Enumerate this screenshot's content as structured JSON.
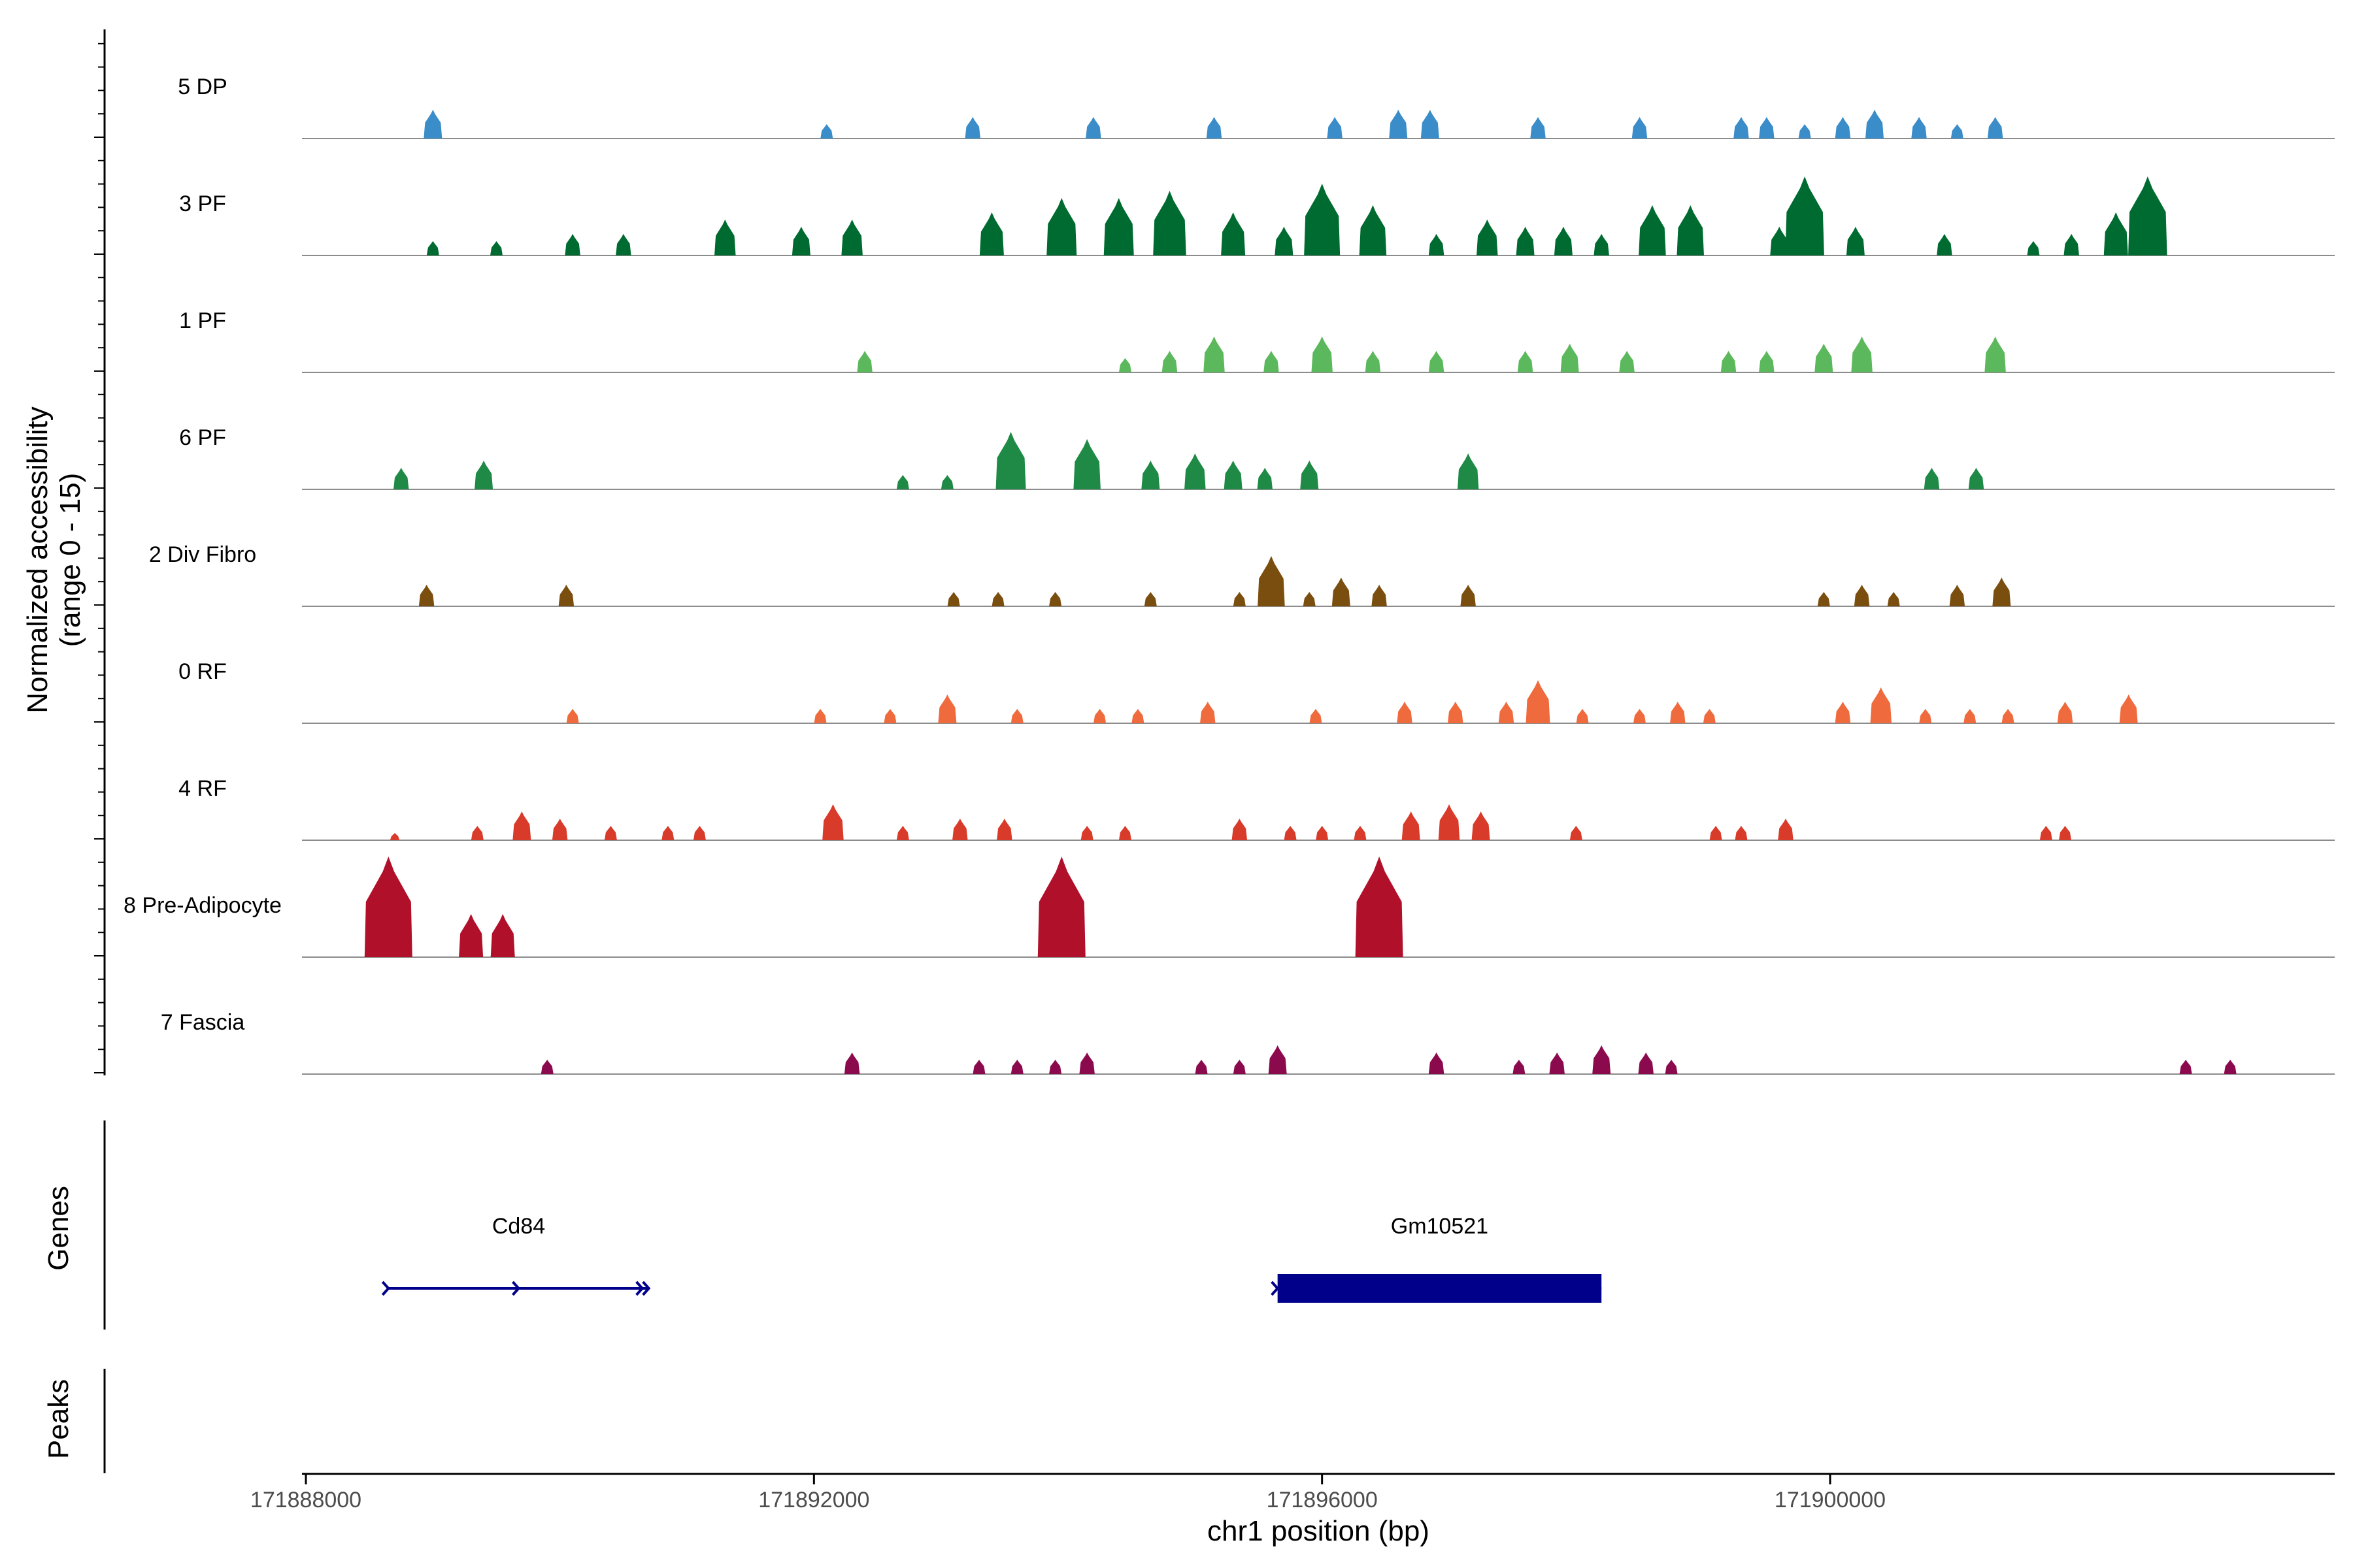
{
  "chart_data": {
    "type": "area",
    "title": "",
    "ylabel_line1": "Normalized accessibility",
    "ylabel_line2": "(range 0 - 15)",
    "ylim": [
      0,
      15
    ],
    "xlabel": "chr1 position (bp)",
    "xlim": [
      171888000,
      171904000
    ],
    "x_ticks": [
      171888000,
      171892000,
      171896000,
      171900000
    ],
    "x_tick_labels": [
      "171888000",
      "171892000",
      "171896000",
      "171900000"
    ],
    "genes_panel_label": "Genes",
    "peaks_panel_label": "Peaks",
    "tracks": [
      {
        "name": "5 DP",
        "color": "#3a8dc8",
        "peaks": [
          [
            171889000,
            4
          ],
          [
            171892100,
            2
          ],
          [
            171893250,
            3
          ],
          [
            171894200,
            3
          ],
          [
            171895150,
            3
          ],
          [
            171896100,
            3
          ],
          [
            171896600,
            4
          ],
          [
            171896850,
            4
          ],
          [
            171897700,
            3
          ],
          [
            171898500,
            3
          ],
          [
            171899300,
            3
          ],
          [
            171899500,
            3
          ],
          [
            171899800,
            2
          ],
          [
            171900100,
            3
          ],
          [
            171900350,
            4
          ],
          [
            171900700,
            3
          ],
          [
            171901000,
            2
          ],
          [
            171901300,
            3
          ]
        ]
      },
      {
        "name": "3 PF",
        "color": "#006b30",
        "peaks": [
          [
            171889000,
            2
          ],
          [
            171889500,
            2
          ],
          [
            171890100,
            3
          ],
          [
            171890500,
            3
          ],
          [
            171891300,
            5
          ],
          [
            171891900,
            4
          ],
          [
            171892300,
            5
          ],
          [
            171893400,
            6
          ],
          [
            171893950,
            8
          ],
          [
            171894400,
            8
          ],
          [
            171894800,
            9
          ],
          [
            171895300,
            6
          ],
          [
            171895700,
            4
          ],
          [
            171896000,
            10
          ],
          [
            171896400,
            7
          ],
          [
            171896900,
            3
          ],
          [
            171897300,
            5
          ],
          [
            171897600,
            4
          ],
          [
            171897900,
            4
          ],
          [
            171898200,
            3
          ],
          [
            171898600,
            7
          ],
          [
            171898900,
            7
          ],
          [
            171899600,
            4
          ],
          [
            171899800,
            11
          ],
          [
            171900200,
            4
          ],
          [
            171900900,
            3
          ],
          [
            171901600,
            2
          ],
          [
            171901900,
            3
          ],
          [
            171902250,
            6
          ],
          [
            171902500,
            11
          ]
        ]
      },
      {
        "name": "1 PF",
        "color": "#5cb85c",
        "peaks": [
          [
            171892400,
            3
          ],
          [
            171894450,
            2
          ],
          [
            171894800,
            3
          ],
          [
            171895150,
            5
          ],
          [
            171895600,
            3
          ],
          [
            171896000,
            5
          ],
          [
            171896400,
            3
          ],
          [
            171896900,
            3
          ],
          [
            171897600,
            3
          ],
          [
            171897950,
            4
          ],
          [
            171898400,
            3
          ],
          [
            171899200,
            3
          ],
          [
            171899500,
            3
          ],
          [
            171899950,
            4
          ],
          [
            171900250,
            5
          ],
          [
            171901300,
            5
          ]
        ]
      },
      {
        "name": "6 PF",
        "color": "#1e8a45",
        "peaks": [
          [
            171888750,
            3
          ],
          [
            171889400,
            4
          ],
          [
            171892700,
            2
          ],
          [
            171893050,
            2
          ],
          [
            171893550,
            8
          ],
          [
            171894150,
            7
          ],
          [
            171894650,
            4
          ],
          [
            171895000,
            5
          ],
          [
            171895300,
            4
          ],
          [
            171895550,
            3
          ],
          [
            171895900,
            4
          ],
          [
            171897150,
            5
          ],
          [
            171900800,
            3
          ],
          [
            171901150,
            3
          ]
        ]
      },
      {
        "name": "2 Div Fibro",
        "color": "#7a4e0e",
        "peaks": [
          [
            171888950,
            3
          ],
          [
            171890050,
            3
          ],
          [
            171893100,
            2
          ],
          [
            171893450,
            2
          ],
          [
            171893900,
            2
          ],
          [
            171894650,
            2
          ],
          [
            171895350,
            2
          ],
          [
            171895600,
            7
          ],
          [
            171895900,
            2
          ],
          [
            171896150,
            4
          ],
          [
            171896450,
            3
          ],
          [
            171897150,
            3
          ],
          [
            171899950,
            2
          ],
          [
            171900250,
            3
          ],
          [
            171900500,
            2
          ],
          [
            171901000,
            3
          ],
          [
            171901350,
            4
          ]
        ]
      },
      {
        "name": "0 RF",
        "color": "#ef6a3c",
        "peaks": [
          [
            171890100,
            2
          ],
          [
            171892050,
            2
          ],
          [
            171892600,
            2
          ],
          [
            171893050,
            4
          ],
          [
            171893600,
            2
          ],
          [
            171894250,
            2
          ],
          [
            171894550,
            2
          ],
          [
            171895100,
            3
          ],
          [
            171895950,
            2
          ],
          [
            171896650,
            3
          ],
          [
            171897050,
            3
          ],
          [
            171897450,
            3
          ],
          [
            171897700,
            6
          ],
          [
            171898050,
            2
          ],
          [
            171898500,
            2
          ],
          [
            171898800,
            3
          ],
          [
            171899050,
            2
          ],
          [
            171900100,
            3
          ],
          [
            171900400,
            5
          ],
          [
            171900750,
            2
          ],
          [
            171901100,
            2
          ],
          [
            171901400,
            2
          ],
          [
            171901850,
            3
          ],
          [
            171902350,
            4
          ]
        ]
      },
      {
        "name": "4 RF",
        "color": "#d93b2b",
        "peaks": [
          [
            171888700,
            1
          ],
          [
            171889350,
            2
          ],
          [
            171889700,
            4
          ],
          [
            171890000,
            3
          ],
          [
            171890400,
            2
          ],
          [
            171890850,
            2
          ],
          [
            171891100,
            2
          ],
          [
            171892150,
            5
          ],
          [
            171892700,
            2
          ],
          [
            171893150,
            3
          ],
          [
            171893500,
            3
          ],
          [
            171894150,
            2
          ],
          [
            171894450,
            2
          ],
          [
            171895350,
            3
          ],
          [
            171895750,
            2
          ],
          [
            171896000,
            2
          ],
          [
            171896300,
            2
          ],
          [
            171896700,
            4
          ],
          [
            171897000,
            5
          ],
          [
            171897250,
            4
          ],
          [
            171898000,
            2
          ],
          [
            171899100,
            2
          ],
          [
            171899300,
            2
          ],
          [
            171899650,
            3
          ],
          [
            171901700,
            2
          ],
          [
            171901850,
            2
          ]
        ]
      },
      {
        "name": "8 Pre-Adipocyte",
        "color": "#b0102a",
        "peaks": [
          [
            171888650,
            14
          ],
          [
            171889300,
            6
          ],
          [
            171889550,
            6
          ],
          [
            171893950,
            14
          ],
          [
            171896450,
            14
          ]
        ]
      },
      {
        "name": "7 Fascia",
        "color": "#8b0a4e",
        "peaks": [
          [
            171889900,
            2
          ],
          [
            171892300,
            3
          ],
          [
            171893300,
            2
          ],
          [
            171893600,
            2
          ],
          [
            171893900,
            2
          ],
          [
            171894150,
            3
          ],
          [
            171895050,
            2
          ],
          [
            171895350,
            2
          ],
          [
            171895650,
            4
          ],
          [
            171896900,
            3
          ],
          [
            171897550,
            2
          ],
          [
            171897850,
            3
          ],
          [
            171898200,
            4
          ],
          [
            171898550,
            3
          ],
          [
            171898750,
            2
          ],
          [
            171902800,
            2
          ],
          [
            171903150,
            2
          ]
        ]
      }
    ],
    "genes": [
      {
        "name": "Cd84",
        "start": 171888650,
        "end": 171890700,
        "strand": "+",
        "type": "line"
      },
      {
        "name": "Gm10521",
        "start": 171895650,
        "end": 171898200,
        "strand": "+",
        "type": "block"
      }
    ]
  }
}
